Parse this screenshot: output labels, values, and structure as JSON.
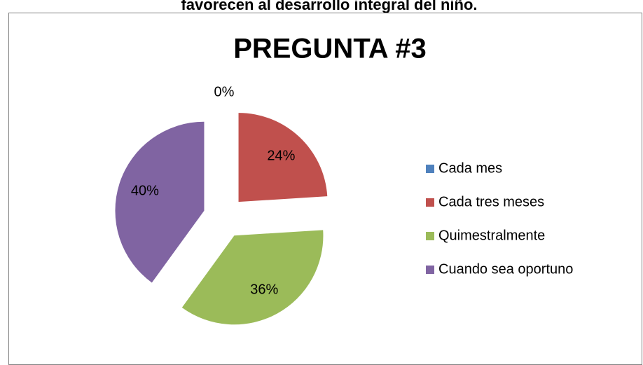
{
  "caption": "favorecen al desarrollo integral del niño.",
  "chart_data": {
    "type": "pie",
    "title": "PREGUNTA #3",
    "categories": [
      "Cada mes",
      "Cada tres meses",
      "Quimestralmente",
      "Cuando sea oportuno"
    ],
    "values": [
      0,
      24,
      36,
      40
    ],
    "value_labels": [
      "0%",
      "24%",
      "36%",
      "40%"
    ],
    "colors": [
      "#4f81bd",
      "#c0504d",
      "#9bbb59",
      "#8064a2"
    ],
    "legend": "right"
  }
}
